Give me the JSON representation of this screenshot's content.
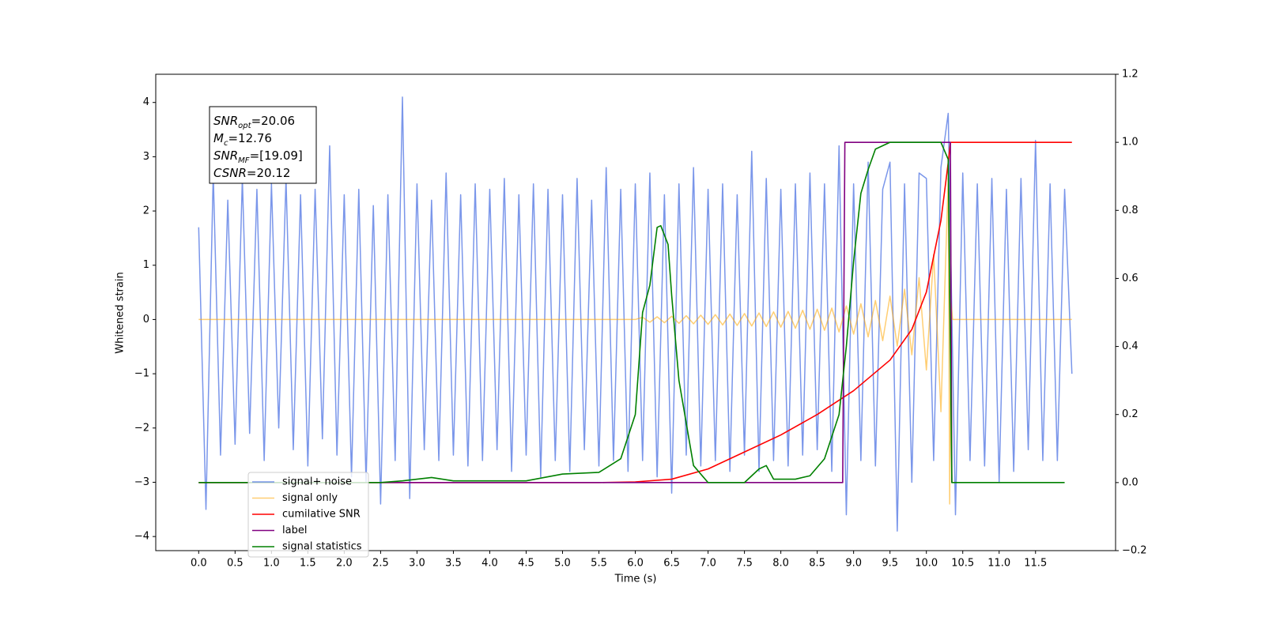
{
  "chart_data": {
    "type": "line",
    "xlabel": "Time (s)",
    "ylabel": "Whitened strain",
    "xlim": [
      -0.59,
      12.6
    ],
    "ylim": [
      -4.26,
      4.52
    ],
    "y2lim": [
      -0.2,
      1.2
    ],
    "xticks": [
      {
        "value": 0,
        "label": "0.0"
      },
      0.5,
      {
        "value": 1,
        "label": "1.0"
      },
      1.5,
      {
        "value": 2,
        "label": "2.0"
      },
      2.5,
      {
        "value": 3,
        "label": "3.0"
      },
      3.5,
      {
        "value": 4,
        "label": "4.0"
      },
      4.5,
      {
        "value": 5,
        "label": "5.0"
      },
      5.5,
      {
        "value": 6,
        "label": "6.0"
      },
      6.5,
      {
        "value": 7,
        "label": "7.0"
      },
      7.5,
      {
        "value": 8,
        "label": "8.0"
      },
      8.5,
      {
        "value": 9,
        "label": "9.0"
      },
      9.5,
      {
        "value": 10,
        "label": "10.0"
      },
      10.5,
      {
        "value": 11,
        "label": "11.0"
      },
      11.5
    ],
    "yticks": [
      {
        "value": -4,
        "label": "−4"
      },
      {
        "value": -3,
        "label": "−3"
      },
      {
        "value": -2,
        "label": "−2"
      },
      {
        "value": -1,
        "label": "−1"
      },
      0,
      1,
      2,
      3,
      4
    ],
    "y2ticks": [
      {
        "value": -0.2,
        "label": "−0.2"
      },
      {
        "value": 0,
        "label": "0.0"
      },
      0.2,
      0.4,
      0.6,
      0.8,
      {
        "value": 1,
        "label": "1.0"
      },
      1.2
    ],
    "legend": "lower left",
    "annotations": [
      {
        "text": "SNR",
        "sub": "opt",
        "value": "=20.06"
      },
      {
        "text": "M",
        "sub": "c",
        "value": "=12.76"
      },
      {
        "text": "SNR",
        "sub": "MF",
        "value": "=[19.09]"
      },
      {
        "text": "CSNR",
        "value": "=20.12"
      }
    ],
    "series": [
      {
        "name": "signal+ noise",
        "color": "#4169e1",
        "axis": "y",
        "x": [
          0.0,
          0.1,
          0.2,
          0.3,
          0.4,
          0.5,
          0.6,
          0.7,
          0.8,
          0.9,
          1.0,
          1.1,
          1.2,
          1.3,
          1.4,
          1.5,
          1.6,
          1.7,
          1.8,
          1.9,
          2.0,
          2.1,
          2.2,
          2.3,
          2.4,
          2.5,
          2.6,
          2.7,
          2.8,
          2.9,
          3.0,
          3.1,
          3.2,
          3.3,
          3.4,
          3.5,
          3.6,
          3.7,
          3.8,
          3.9,
          4.0,
          4.1,
          4.2,
          4.3,
          4.4,
          4.5,
          4.6,
          4.7,
          4.8,
          4.9,
          5.0,
          5.1,
          5.2,
          5.3,
          5.4,
          5.5,
          5.6,
          5.7,
          5.8,
          5.9,
          6.0,
          6.1,
          6.2,
          6.3,
          6.4,
          6.5,
          6.6,
          6.7,
          6.8,
          6.9,
          7.0,
          7.1,
          7.2,
          7.3,
          7.4,
          7.5,
          7.6,
          7.7,
          7.8,
          7.9,
          8.0,
          8.1,
          8.2,
          8.3,
          8.4,
          8.5,
          8.6,
          8.7,
          8.8,
          8.9,
          9.0,
          9.1,
          9.2,
          9.3,
          9.4,
          9.5,
          9.6,
          9.7,
          9.8,
          9.9,
          10.0,
          10.1,
          10.2,
          10.3,
          10.4,
          10.5,
          10.6,
          10.7,
          10.8,
          10.9,
          11.0,
          11.1,
          11.2,
          11.3,
          11.4,
          11.5,
          11.6,
          11.7,
          11.8,
          11.9,
          12.0
        ],
        "values": [
          1.7,
          -3.5,
          2.7,
          -2.5,
          2.2,
          -2.3,
          2.6,
          -2.1,
          2.4,
          -2.6,
          2.5,
          -2.0,
          2.6,
          -2.4,
          2.3,
          -2.7,
          2.4,
          -2.2,
          3.2,
          -2.5,
          2.3,
          -2.9,
          2.4,
          -3.0,
          2.1,
          -3.4,
          2.3,
          -2.6,
          4.1,
          -3.3,
          2.5,
          -2.4,
          2.2,
          -2.6,
          2.7,
          -2.5,
          2.3,
          -2.7,
          2.5,
          -2.6,
          2.4,
          -2.4,
          2.6,
          -2.8,
          2.3,
          -2.5,
          2.5,
          -2.9,
          2.4,
          -2.6,
          2.3,
          -2.8,
          2.6,
          -2.4,
          2.2,
          -2.7,
          2.8,
          -2.6,
          2.4,
          -2.8,
          2.5,
          -2.6,
          2.7,
          -2.9,
          2.3,
          -3.2,
          2.5,
          -2.5,
          2.8,
          -2.7,
          2.4,
          -2.6,
          2.5,
          -2.8,
          2.3,
          -2.5,
          3.1,
          -2.8,
          2.6,
          -2.6,
          2.4,
          -2.7,
          2.5,
          -2.5,
          2.7,
          -2.4,
          2.5,
          -2.8,
          3.2,
          -3.6,
          2.5,
          -2.6,
          2.9,
          -2.7,
          2.4,
          2.9,
          -3.9,
          2.5,
          -3.0,
          2.7,
          2.6,
          -2.6,
          2.8,
          3.8,
          -3.6,
          2.7,
          -2.6,
          2.5,
          -2.7,
          2.6,
          -3.0,
          2.4,
          -2.8,
          2.6,
          -2.4,
          3.3,
          -2.6,
          2.5,
          -2.6,
          2.4,
          -1.0
        ]
      },
      {
        "name": "signal only",
        "color": "#ffa500",
        "axis": "y",
        "x": [
          0,
          6.0,
          6.1,
          6.2,
          6.3,
          6.4,
          6.5,
          6.6,
          6.7,
          6.8,
          6.9,
          7.0,
          7.1,
          7.2,
          7.3,
          7.4,
          7.5,
          7.6,
          7.7,
          7.8,
          7.9,
          8.0,
          8.1,
          8.2,
          8.3,
          8.4,
          8.5,
          8.6,
          8.7,
          8.8,
          8.9,
          9.0,
          9.1,
          9.2,
          9.3,
          9.4,
          9.5,
          9.6,
          9.7,
          9.8,
          9.9,
          10.0,
          10.1,
          10.2,
          10.3,
          10.32,
          10.34,
          10.36,
          12.0
        ],
        "values": [
          0,
          0,
          0.04,
          -0.05,
          0.05,
          -0.06,
          0.06,
          -0.07,
          0.07,
          -0.08,
          0.08,
          -0.09,
          0.09,
          -0.1,
          0.1,
          -0.11,
          0.11,
          -0.12,
          0.12,
          -0.13,
          0.14,
          -0.14,
          0.15,
          -0.16,
          0.17,
          -0.18,
          0.19,
          -0.2,
          0.21,
          -0.23,
          0.25,
          -0.27,
          0.29,
          -0.32,
          0.35,
          -0.39,
          0.43,
          -0.49,
          0.56,
          -0.65,
          0.77,
          -0.93,
          1.2,
          -1.7,
          2.6,
          -3.4,
          0.3,
          0,
          0
        ]
      },
      {
        "name": "cumilative SNR",
        "color": "#ff0000",
        "axis": "y2",
        "x": [
          0,
          5.5,
          6.0,
          6.5,
          7.0,
          7.5,
          8.0,
          8.5,
          9.0,
          9.5,
          9.8,
          10.0,
          10.2,
          10.3,
          10.33,
          12.0
        ],
        "values": [
          0,
          0,
          0.002,
          0.01,
          0.04,
          0.09,
          0.14,
          0.2,
          0.27,
          0.36,
          0.45,
          0.56,
          0.77,
          0.94,
          1.0,
          1.0
        ]
      },
      {
        "name": "label",
        "color": "#800080",
        "axis": "y2",
        "x": [
          0,
          8.85,
          8.88,
          10.33,
          10.35
        ],
        "values": [
          0,
          0,
          1,
          1,
          0
        ]
      },
      {
        "name": "signal statistics",
        "color": "#008000",
        "axis": "y2",
        "x": [
          0,
          2.5,
          2.8,
          3.0,
          3.2,
          3.5,
          4.0,
          4.5,
          5.0,
          5.5,
          5.8,
          6.0,
          6.1,
          6.2,
          6.3,
          6.35,
          6.45,
          6.5,
          6.6,
          6.8,
          7.0,
          7.5,
          7.7,
          7.8,
          7.9,
          8.2,
          8.4,
          8.6,
          8.8,
          8.9,
          9.0,
          9.1,
          9.2,
          9.3,
          9.5,
          10.2,
          10.3,
          10.35,
          11.9
        ],
        "values": [
          0,
          0,
          0.005,
          0.01,
          0.015,
          0.005,
          0.005,
          0.005,
          0.025,
          0.03,
          0.07,
          0.2,
          0.5,
          0.58,
          0.75,
          0.755,
          0.7,
          0.55,
          0.3,
          0.05,
          0,
          0,
          0.04,
          0.05,
          0.01,
          0.01,
          0.02,
          0.07,
          0.2,
          0.4,
          0.65,
          0.85,
          0.92,
          0.98,
          1,
          1,
          0.95,
          0,
          0
        ]
      }
    ]
  }
}
